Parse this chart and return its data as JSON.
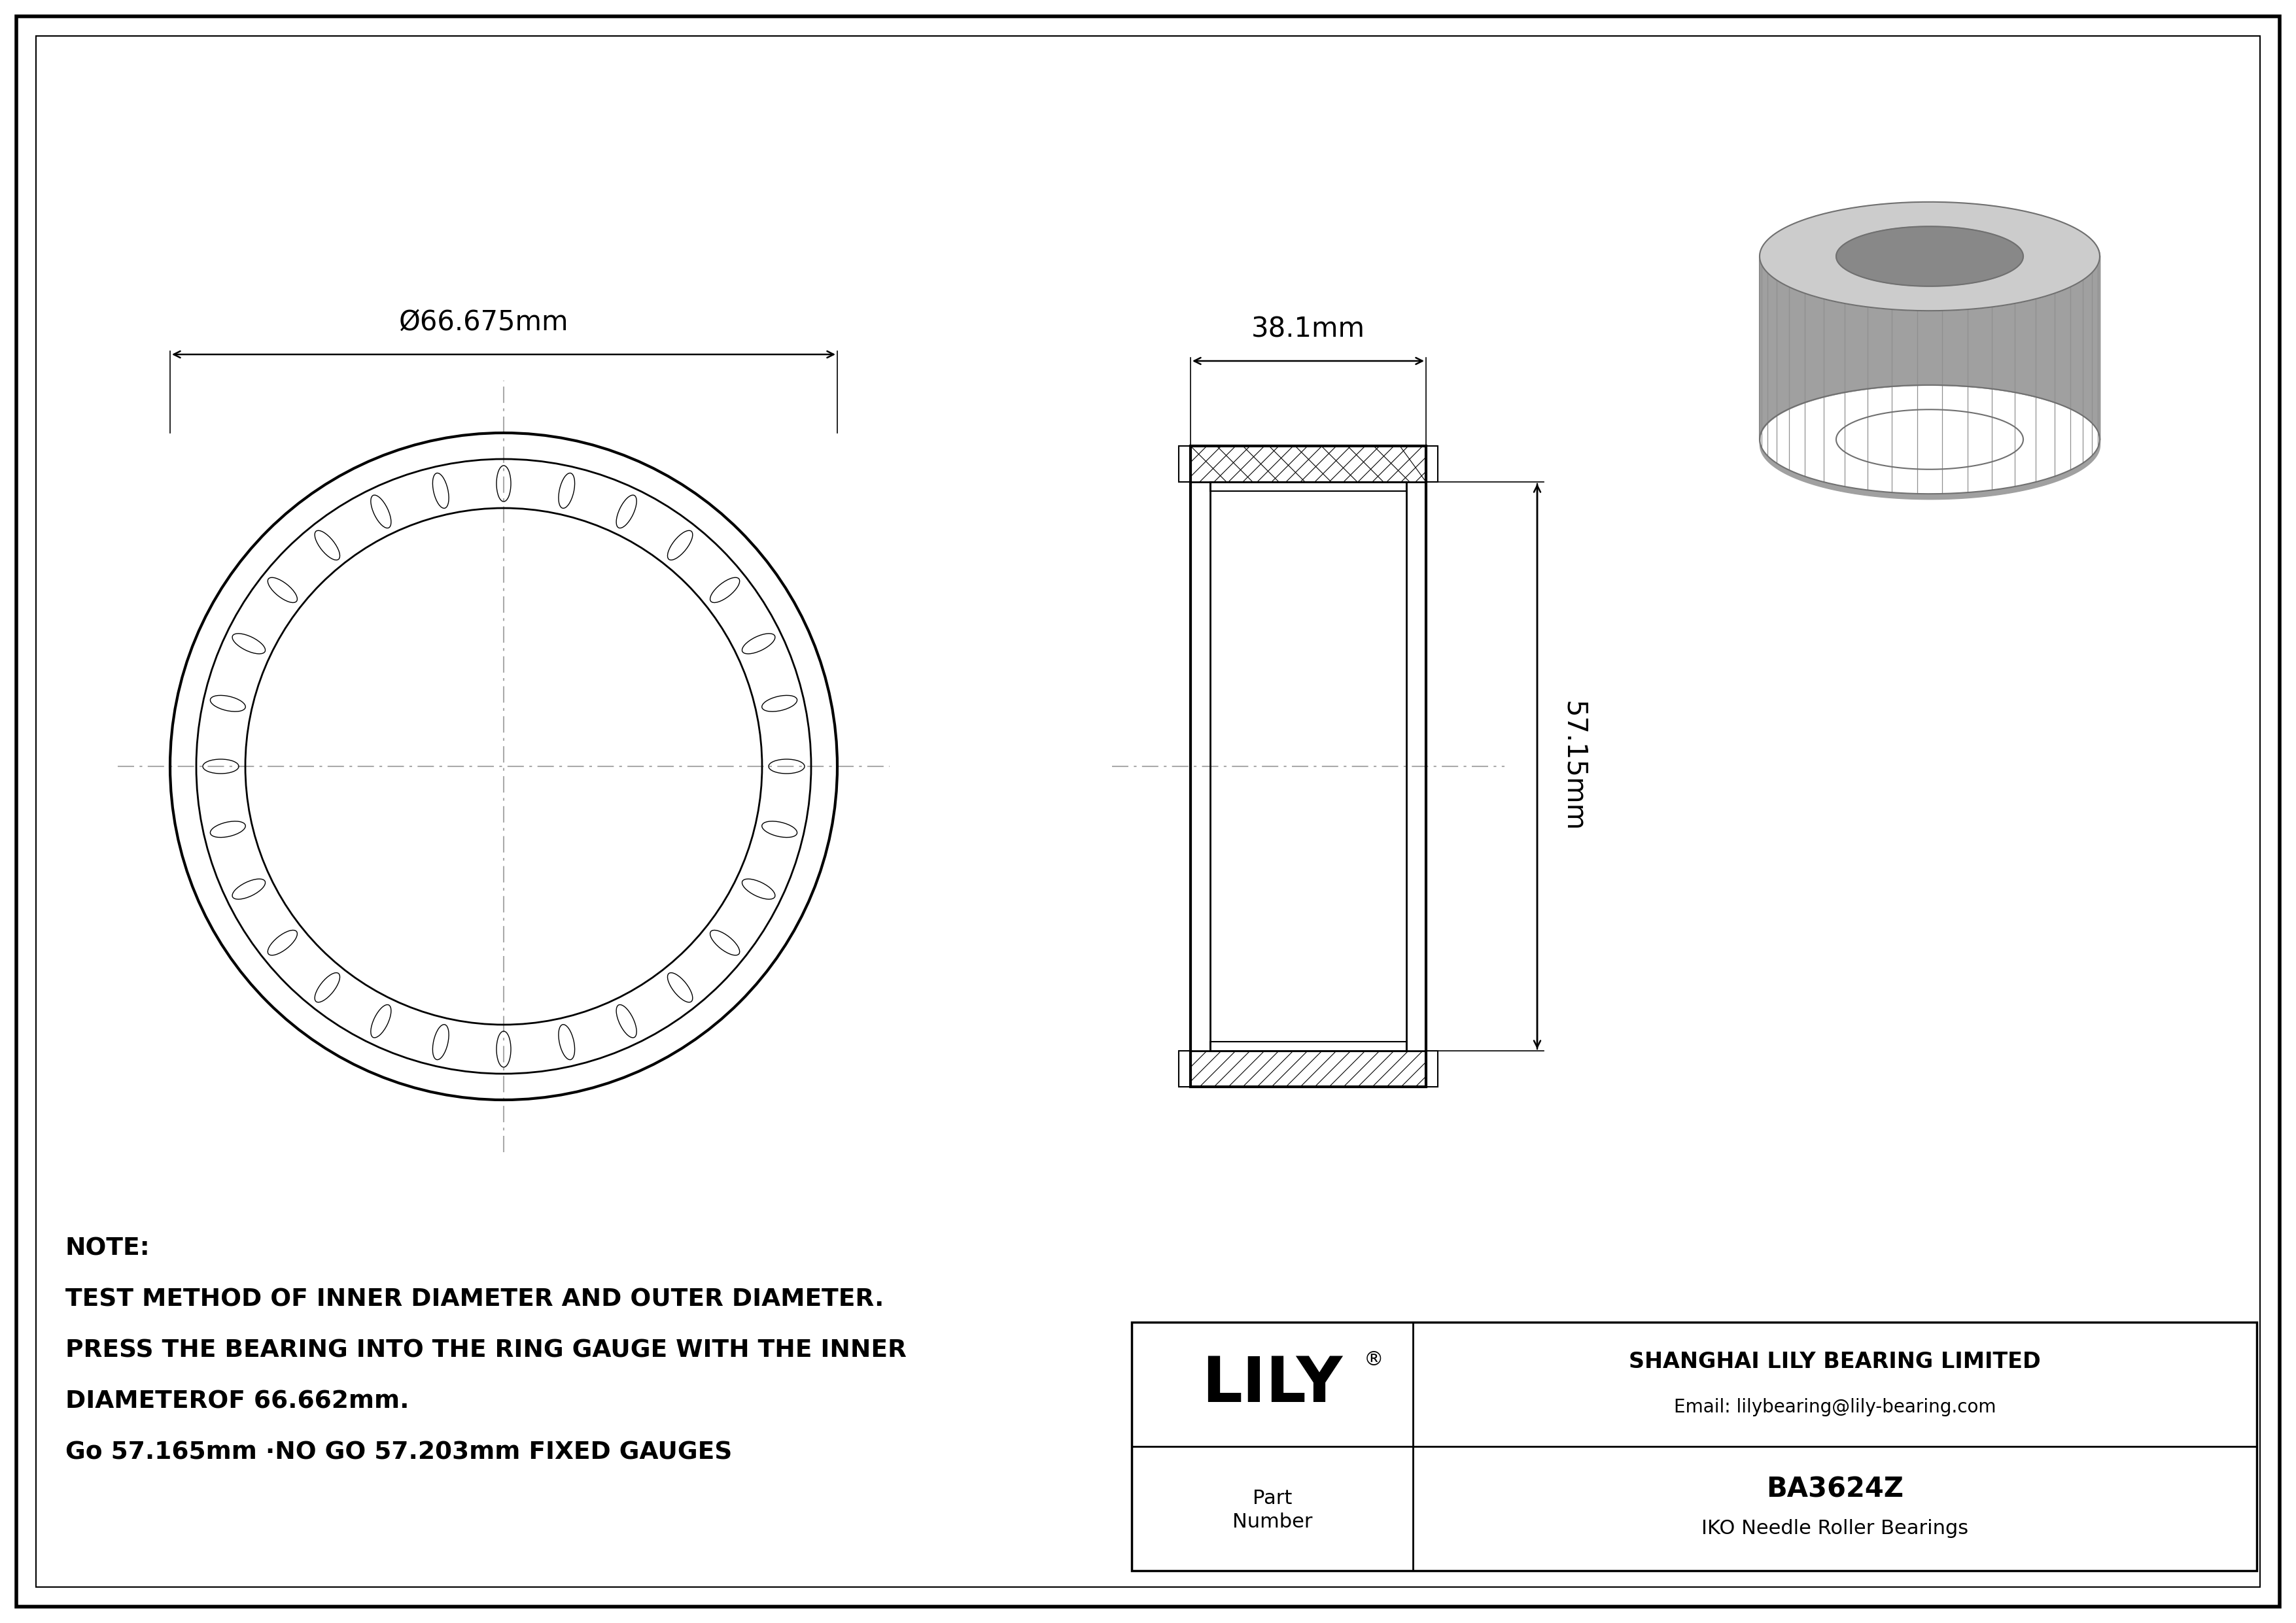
{
  "bg_color": "#ffffff",
  "border_color": "#000000",
  "line_color": "#000000",
  "centerline_color": "#999999",
  "outer_diameter_label": "Ø66.675mm",
  "width_label": "38.1mm",
  "height_label": "57.15mm",
  "note_line1": "NOTE:",
  "note_line2": "TEST METHOD OF INNER DIAMETER AND OUTER DIAMETER.",
  "note_line3": "PRESS THE BEARING INTO THE RING GAUGE WITH THE INNER",
  "note_line4": "DIAMETEROF 66.662mm.",
  "note_line5": "Go 57.165mm ·NO GO 57.203mm FIXED GAUGES",
  "company_name": "SHANGHAI LILY BEARING LIMITED",
  "company_email": "Email: lilybearing@lily-bearing.com",
  "brand": "LILY",
  "brand_reg": "®",
  "part_label": "Part\nNumber",
  "part_number": "BA3624Z",
  "part_type": "IKO Needle Roller Bearings"
}
